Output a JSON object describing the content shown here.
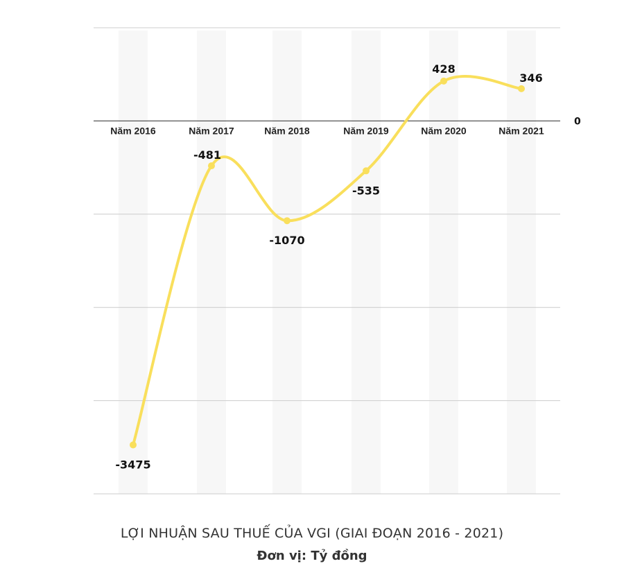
{
  "chart_data": {
    "type": "line",
    "categories": [
      "Năm 2016",
      "Năm 2017",
      "Năm 2018",
      "Năm 2019",
      "Năm 2020",
      "Năm 2021"
    ],
    "values": [
      -3475,
      -481,
      -1070,
      -535,
      428,
      346
    ],
    "data_labels": [
      "-3475",
      "-481",
      "-1070",
      "-535",
      "428",
      "346"
    ],
    "zero_label": "0",
    "ylim": [
      -4000,
      1000
    ],
    "grid": true,
    "line_color": "#F9DF5C",
    "band_color": "#F7F7F7",
    "grid_color": "#CCCCCC",
    "axis_color": "#555555",
    "title": "LỢI NHUẬN SAU THUẾ CỦA VGI  (GIAI ĐOẠN 2016 - 2021)",
    "unit": "Đơn vị: Tỷ đồng"
  }
}
